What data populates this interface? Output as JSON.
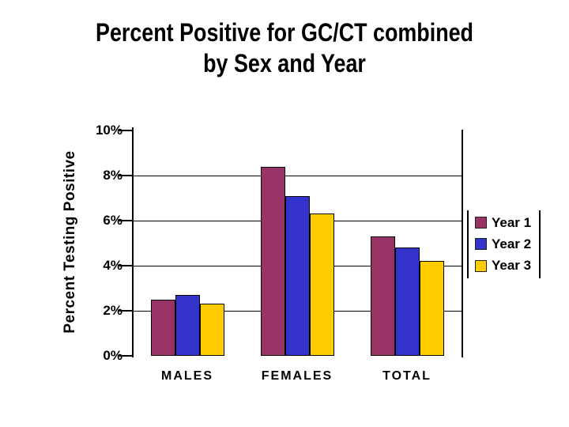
{
  "slide": {
    "title_line1": "Percent Positive for GC/CT combined",
    "title_line2": "by Sex and Year"
  },
  "chart_data": {
    "type": "bar",
    "title": "Percent Positive for GC/CT combined by Sex and Year",
    "ylabel": "Percent Testing Positive",
    "xlabel": "",
    "categories": [
      "MALES",
      "FEMALES",
      "TOTAL"
    ],
    "series": [
      {
        "name": "Year 1",
        "color": "#993366",
        "values": [
          2.5,
          8.4,
          5.3
        ]
      },
      {
        "name": "Year 2",
        "color": "#3333CC",
        "values": [
          2.7,
          7.1,
          4.8
        ]
      },
      {
        "name": "Year 3",
        "color": "#FFCC00",
        "values": [
          2.3,
          6.3,
          4.2
        ]
      }
    ],
    "ylim": [
      0,
      10
    ],
    "yticks": [
      {
        "value": 0,
        "label": "0%"
      },
      {
        "value": 2,
        "label": "2%"
      },
      {
        "value": 4,
        "label": "4%"
      },
      {
        "value": 6,
        "label": "6%"
      },
      {
        "value": 8,
        "label": "8%"
      },
      {
        "value": 10,
        "label": "10%"
      }
    ],
    "grid": "horizontal",
    "legend_position": "right",
    "bar_outline_color": "#000000",
    "text_color": "#000000",
    "background_color": "#FFFFFF"
  }
}
